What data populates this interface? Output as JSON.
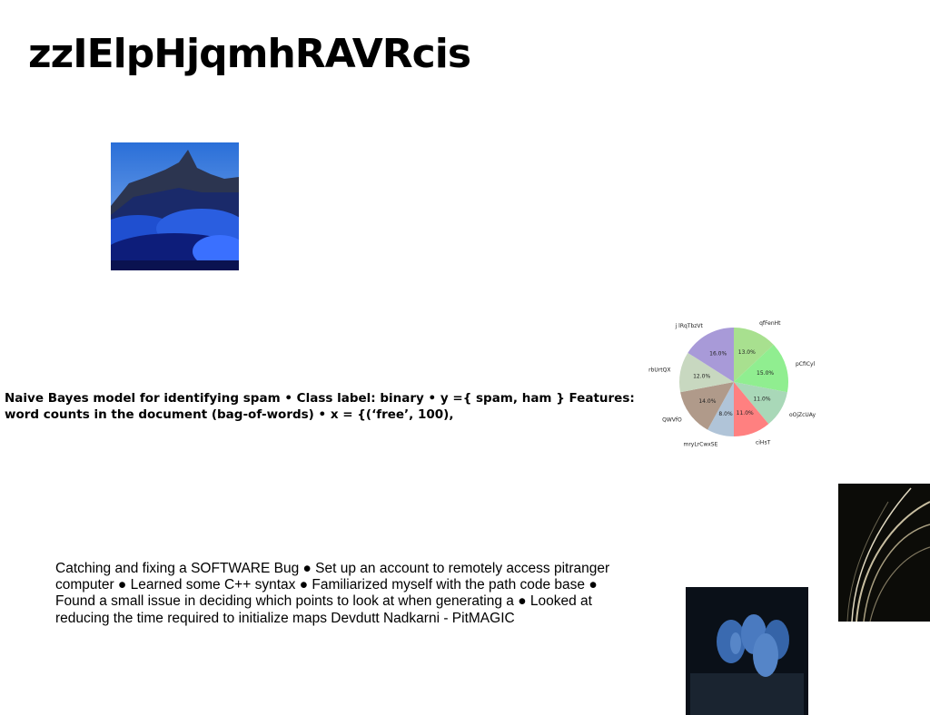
{
  "title": "zzIElpHjqmhRAVRcis",
  "naive_bayes_text": "Naive Bayes model for identifying spam • Class label: binary • y ={ spam, ham } Features: word counts in the document (bag-of-words) • x = {(‘free’, 100),",
  "software_text": "Catching and fixing a SOFTWARE Bug ● Set up an account to remotely access pitranger computer ● Learned some C++ syntax ● Familiarized myself with the path code base ● Found a small issue in deciding which points to look at when generating a ● Looked at reducing the time required to initialize maps Devdutt Nadkarni - PitMAGIC",
  "images": {
    "mountain": "mountain-clouds-photo",
    "feathers": "dark-feather-photo",
    "fruit": "blue-fruit-photo"
  },
  "chart_data": {
    "type": "pie",
    "title": "",
    "categories": [
      "qfFenHt",
      "pCfICyl",
      "oOjZcUAy",
      "ciHsT",
      "mryLrCwxSE",
      "QWVfO",
      "rbUrtQX",
      "j lRqTbzVt"
    ],
    "values": [
      13.0,
      15.0,
      11.0,
      11.0,
      8.0,
      14.0,
      12.0,
      16.0
    ],
    "value_labels": [
      "13.0%",
      "15.0%",
      "11.0%",
      "11.0%",
      "8.0%",
      "14.0%",
      "12.0%",
      "16.0%"
    ],
    "colors": [
      "#a8e08f",
      "#90ee90",
      "#a9d8b8",
      "#ff8080",
      "#b0c4d8",
      "#b09a8a",
      "#c8d8c0",
      "#a89ad8"
    ],
    "start_angle_deg": 90,
    "direction": "clockwise"
  }
}
